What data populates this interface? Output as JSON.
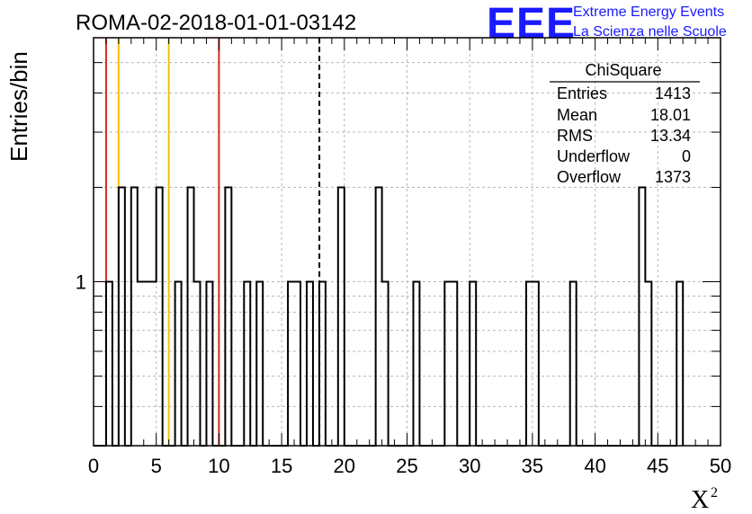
{
  "title": "ROMA-02-2018-01-01-03142",
  "logo": {
    "mark": "EEE",
    "line1": "Extreme Energy Events",
    "line2": "La Scienza nelle Scuole"
  },
  "stats": {
    "name": "ChiSquare",
    "rows": [
      {
        "label": "Entries",
        "value": "1413"
      },
      {
        "label": "Mean",
        "value": "18.01"
      },
      {
        "label": "RMS",
        "value": "13.34"
      },
      {
        "label": "Underflow",
        "value": "0"
      },
      {
        "label": "Overflow",
        "value": "1373"
      }
    ]
  },
  "chart_data": {
    "type": "bar",
    "style": "step-histogram",
    "title": "ROMA-02-2018-01-01-03142",
    "xlabel": "X",
    "xlabel_superscript": "2",
    "ylabel": "Entries/bin",
    "xlim": [
      0,
      50
    ],
    "ylim": [
      0.3,
      6
    ],
    "yscale": "log",
    "grid": true,
    "x_ticks": [
      "0",
      "5",
      "10",
      "15",
      "20",
      "25",
      "30",
      "35",
      "40",
      "45",
      "50"
    ],
    "y_tick_labels": [
      {
        "value": 1,
        "label": "1"
      }
    ],
    "bin_width": 0.5,
    "bins": [
      {
        "x": 1.0,
        "count": 1
      },
      {
        "x": 2.0,
        "count": 2
      },
      {
        "x": 3.0,
        "count": 2
      },
      {
        "x": 3.5,
        "count": 1
      },
      {
        "x": 4.0,
        "count": 1
      },
      {
        "x": 4.5,
        "count": 1
      },
      {
        "x": 5.0,
        "count": 2
      },
      {
        "x": 6.5,
        "count": 1
      },
      {
        "x": 7.5,
        "count": 2
      },
      {
        "x": 8.0,
        "count": 1
      },
      {
        "x": 9.0,
        "count": 1
      },
      {
        "x": 10.5,
        "count": 2
      },
      {
        "x": 12.0,
        "count": 1
      },
      {
        "x": 13.0,
        "count": 1
      },
      {
        "x": 15.5,
        "count": 1
      },
      {
        "x": 16.0,
        "count": 1
      },
      {
        "x": 17.0,
        "count": 1
      },
      {
        "x": 18.0,
        "count": 1
      },
      {
        "x": 19.5,
        "count": 2
      },
      {
        "x": 22.5,
        "count": 2
      },
      {
        "x": 23.0,
        "count": 1
      },
      {
        "x": 25.5,
        "count": 1
      },
      {
        "x": 28.0,
        "count": 1
      },
      {
        "x": 28.5,
        "count": 1
      },
      {
        "x": 30.0,
        "count": 1
      },
      {
        "x": 34.5,
        "count": 1
      },
      {
        "x": 35.0,
        "count": 1
      },
      {
        "x": 38.0,
        "count": 1
      },
      {
        "x": 43.5,
        "count": 2
      },
      {
        "x": 44.0,
        "count": 1
      },
      {
        "x": 46.5,
        "count": 1
      }
    ],
    "reference_lines": [
      {
        "x": 1,
        "color": "#d42a1e",
        "style": "solid"
      },
      {
        "x": 2,
        "color": "#f2c200",
        "style": "solid"
      },
      {
        "x": 6,
        "color": "#f2c200",
        "style": "solid"
      },
      {
        "x": 10,
        "color": "#d42a1e",
        "style": "solid"
      },
      {
        "x": 18.01,
        "color": "#000000",
        "style": "dashed"
      }
    ]
  }
}
